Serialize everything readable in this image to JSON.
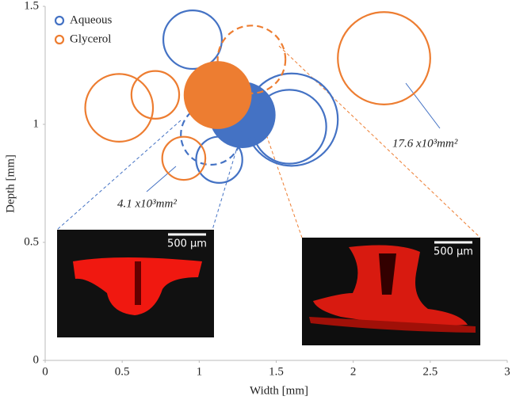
{
  "chart_data": {
    "type": "bubble",
    "x_label": "Width [mm]",
    "y_label": "Depth [mm]",
    "xlim": [
      0,
      3
    ],
    "xticks": [
      0,
      0.5,
      1,
      1.5,
      2,
      2.5,
      3
    ],
    "ylim": [
      0,
      1.5
    ],
    "yticks": [
      0,
      0.5,
      1,
      1.5
    ],
    "legend": "upper left",
    "series": [
      {
        "name": "Aqueous",
        "color": "#4472c4",
        "x": [
          0.957,
          1.28,
          1.6,
          1.585,
          1.076,
          1.13
        ],
        "values": [
          1.359,
          1.04,
          1.02,
          0.99,
          0.956,
          0.85
        ],
        "sizes": [
          0.19,
          0.21,
          0.3,
          0.24,
          0.195,
          0.15
        ],
        "filled": [
          false,
          true,
          false,
          false,
          false,
          false
        ],
        "dashed": [
          false,
          false,
          false,
          false,
          true,
          false
        ]
      },
      {
        "name": "Glycerol",
        "color": "#ed7d31",
        "x": [
          0.48,
          0.715,
          1.34,
          1.12,
          0.9,
          2.2
        ],
        "values": [
          1.07,
          1.125,
          1.275,
          1.124,
          0.856,
          1.28
        ],
        "sizes": [
          0.22,
          0.155,
          0.22,
          0.215,
          0.14,
          0.3
        ],
        "filled": [
          false,
          false,
          false,
          true,
          false,
          false
        ],
        "dashed": [
          false,
          false,
          true,
          false,
          false,
          false
        ]
      }
    ],
    "annotations": [
      "17.6 x10³mm²",
      "4.1 x10³mm²"
    ],
    "scale_bars": [
      "500 µm",
      "500 µm"
    ]
  }
}
